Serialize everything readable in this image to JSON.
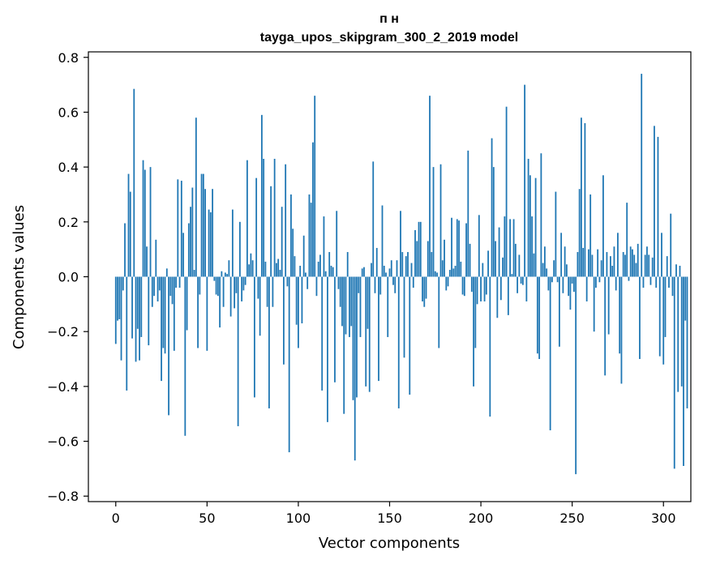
{
  "chart_data": {
    "type": "bar",
    "title_line1": "п н",
    "title_line2": "tayga_upos_skipgram_300_2_2019 model",
    "xlabel": "Vector components",
    "ylabel": "Components values",
    "xlim": [
      -15,
      315
    ],
    "ylim": [
      -0.82,
      0.82
    ],
    "xticks": [
      0,
      50,
      100,
      150,
      200,
      250,
      300
    ],
    "yticks": [
      -0.8,
      -0.6,
      -0.4,
      -0.2,
      0.0,
      0.2,
      0.4,
      0.6,
      0.8
    ],
    "ytick_labels": [
      "−0.8",
      "−0.6",
      "−0.4",
      "−0.2",
      "0.0",
      "0.2",
      "0.4",
      "0.6",
      "0.8"
    ],
    "bar_color": "#1f77b4",
    "values": [
      -0.245,
      -0.16,
      -0.155,
      -0.305,
      -0.05,
      0.195,
      -0.415,
      0.375,
      0.31,
      -0.225,
      0.685,
      -0.31,
      -0.19,
      -0.305,
      -0.22,
      0.425,
      0.39,
      0.11,
      -0.25,
      0.4,
      -0.11,
      -0.07,
      0.135,
      -0.09,
      -0.05,
      -0.38,
      -0.26,
      -0.28,
      0.03,
      -0.505,
      -0.07,
      -0.1,
      -0.27,
      -0.04,
      0.355,
      -0.04,
      0.35,
      0.16,
      -0.58,
      -0.195,
      0.195,
      0.255,
      0.325,
      0.025,
      0.58,
      -0.26,
      -0.065,
      0.375,
      0.375,
      0.32,
      -0.27,
      0.245,
      0.235,
      0.32,
      -0.015,
      -0.065,
      -0.07,
      -0.185,
      0.02,
      -0.11,
      0.015,
      0.01,
      0.06,
      -0.145,
      0.245,
      -0.115,
      -0.06,
      -0.545,
      0.2,
      -0.09,
      -0.05,
      -0.03,
      0.425,
      0.045,
      0.085,
      0.06,
      -0.44,
      0.36,
      -0.08,
      -0.215,
      0.59,
      0.43,
      0.055,
      -0.11,
      -0.48,
      0.33,
      -0.11,
      0.43,
      0.05,
      0.065,
      0.025,
      0.255,
      -0.32,
      0.41,
      -0.035,
      -0.64,
      0.3,
      0.175,
      0.075,
      -0.175,
      -0.26,
      0.04,
      -0.17,
      0.15,
      0.015,
      -0.045,
      0.3,
      0.27,
      0.49,
      0.66,
      -0.07,
      0.055,
      0.08,
      -0.415,
      0.22,
      0.02,
      -0.53,
      0.09,
      0.04,
      0.035,
      -0.385,
      0.24,
      -0.045,
      -0.11,
      -0.18,
      -0.5,
      -0.21,
      0.09,
      -0.22,
      -0.18,
      -0.45,
      -0.67,
      -0.44,
      -0.06,
      -0.22,
      0.03,
      0.035,
      -0.4,
      -0.19,
      -0.42,
      0.05,
      0.42,
      -0.06,
      0.105,
      -0.38,
      -0.065,
      0.26,
      0.04,
      0.015,
      -0.22,
      0.03,
      0.06,
      -0.03,
      -0.06,
      0.06,
      -0.48,
      0.24,
      0.09,
      -0.295,
      0.075,
      0.09,
      -0.43,
      0.05,
      -0.04,
      0.17,
      0.13,
      0.2,
      0.2,
      -0.09,
      -0.11,
      -0.08,
      0.13,
      0.66,
      0.09,
      0.4,
      0.02,
      0.015,
      -0.26,
      0.41,
      0.06,
      0.135,
      -0.05,
      -0.035,
      0.025,
      0.215,
      0.03,
      0.04,
      0.21,
      0.205,
      0.055,
      -0.065,
      -0.07,
      0.195,
      0.46,
      0.12,
      -0.055,
      -0.4,
      -0.26,
      -0.1,
      0.225,
      -0.09,
      0.05,
      -0.09,
      -0.065,
      0.095,
      -0.51,
      0.505,
      0.4,
      0.13,
      -0.15,
      0.18,
      -0.085,
      0.07,
      0.22,
      0.62,
      -0.14,
      0.21,
      0.01,
      0.21,
      0.12,
      -0.06,
      0.08,
      -0.025,
      -0.03,
      0.7,
      -0.09,
      0.43,
      0.37,
      0.22,
      0.085,
      0.36,
      -0.28,
      -0.3,
      0.45,
      0.05,
      0.11,
      0.03,
      -0.05,
      -0.56,
      -0.02,
      0.06,
      0.31,
      -0.02,
      -0.255,
      0.16,
      -0.06,
      0.11,
      0.045,
      -0.07,
      -0.12,
      -0.025,
      -0.055,
      -0.72,
      0.09,
      0.32,
      0.58,
      0.105,
      0.56,
      -0.09,
      0.1,
      0.3,
      0.08,
      -0.2,
      -0.04,
      0.1,
      -0.02,
      0.06,
      0.37,
      -0.36,
      0.09,
      -0.21,
      0.075,
      0.04,
      0.11,
      -0.05,
      0.16,
      -0.28,
      -0.39,
      0.09,
      0.08,
      0.27,
      -0.015,
      0.11,
      0.1,
      0.08,
      0.05,
      0.12,
      -0.3,
      0.74,
      -0.04,
      0.08,
      0.11,
      0.08,
      -0.03,
      0.07,
      0.55,
      -0.04,
      0.51,
      -0.29,
      0.16,
      -0.32,
      -0.22,
      0.075,
      -0.04,
      0.23,
      -0.07,
      -0.7,
      0.045,
      -0.42,
      0.04,
      -0.4,
      -0.69,
      -0.16,
      -0.48
    ]
  }
}
